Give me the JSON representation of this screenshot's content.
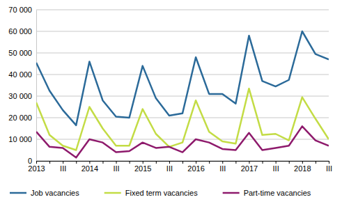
{
  "chart_data": {
    "type": "line",
    "categories": [
      "2013",
      null,
      "III",
      null,
      "2014",
      null,
      "III",
      null,
      "2015",
      null,
      "III",
      null,
      "2016",
      null,
      "III",
      null,
      "2017",
      null,
      "III",
      null,
      "2018",
      null,
      "III"
    ],
    "series": [
      {
        "name": "Job vacancies",
        "color": "#2b6a99",
        "values": [
          45500,
          32500,
          23500,
          16500,
          46000,
          28000,
          20500,
          20000,
          44000,
          29000,
          21000,
          22000,
          48000,
          31000,
          31000,
          26500,
          58000,
          37000,
          34500,
          37500,
          60000,
          49500,
          47000
        ]
      },
      {
        "name": "Fixed term vacancies",
        "color": "#c3dc45",
        "values": [
          27000,
          12000,
          7000,
          5000,
          25000,
          15000,
          7000,
          7000,
          24000,
          12500,
          6500,
          8500,
          28000,
          13500,
          9000,
          8000,
          33500,
          12000,
          12500,
          9500,
          29500,
          19500,
          10000
        ]
      },
      {
        "name": "Part-time vacancies",
        "color": "#8e1a6c",
        "values": [
          13500,
          6500,
          6000,
          1500,
          10000,
          8500,
          4000,
          4500,
          8500,
          6000,
          6500,
          4000,
          10000,
          8500,
          5500,
          5000,
          13000,
          5000,
          6000,
          7000,
          16000,
          9500,
          7000
        ]
      }
    ],
    "ylim": [
      0,
      70000
    ],
    "yticks": [
      0,
      {
        "value": 10000,
        "label": "10 000"
      },
      {
        "value": 20000,
        "label": "20 000"
      },
      {
        "value": 30000,
        "label": "30 000"
      },
      {
        "value": 40000,
        "label": "40 000"
      },
      {
        "value": 50000,
        "label": "50 000"
      },
      {
        "value": 60000,
        "label": "60 000"
      },
      {
        "value": 70000,
        "label": "70 000"
      }
    ],
    "grid": true,
    "legend": "bottom"
  }
}
